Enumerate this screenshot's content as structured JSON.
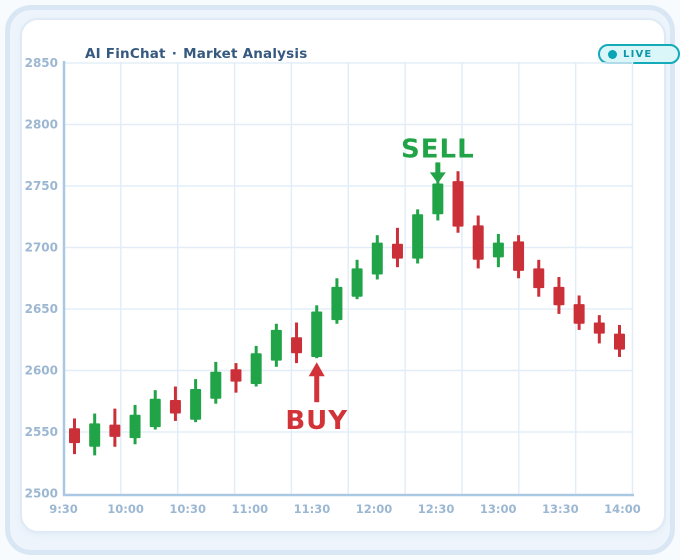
{
  "header": {
    "brand": "AI FinChat",
    "separator": "·",
    "subtitle": "Market Analysis",
    "live_badge": {
      "label": "LIVE"
    }
  },
  "chart_data": {
    "type": "candlestick",
    "title": "AI FinChat · Market Analysis",
    "x_labels": [
      "9:30",
      "10:00",
      "10:30",
      "11:00",
      "11:30",
      "12:00",
      "12:30",
      "13:00",
      "13:30",
      "14:00"
    ],
    "y_tick_values": [
      2850,
      2800,
      2750,
      2700,
      2650,
      2600,
      2550,
      2500
    ],
    "ylim": [
      2500,
      2850
    ],
    "y_step": 50,
    "grid": true,
    "legend": "none",
    "colors": {
      "up": "#21a447",
      "down": "#cb3038",
      "grid": "#e3edf8",
      "axis": "#abc8e2",
      "tick_text": "#9cb7d2",
      "buy": "#d23338",
      "sell": "#21a447"
    },
    "candles": [
      {
        "time": "9:30",
        "open": 2553,
        "high": 2561,
        "low": 2532,
        "close": 2541
      },
      {
        "time": "9:40",
        "open": 2538,
        "high": 2565,
        "low": 2531,
        "close": 2557
      },
      {
        "time": "9:50",
        "open": 2556,
        "high": 2569,
        "low": 2538,
        "close": 2546
      },
      {
        "time": "10:00",
        "open": 2545,
        "high": 2572,
        "low": 2540,
        "close": 2564
      },
      {
        "time": "10:10",
        "open": 2554,
        "high": 2584,
        "low": 2552,
        "close": 2577
      },
      {
        "time": "10:20",
        "open": 2576,
        "high": 2587,
        "low": 2559,
        "close": 2565
      },
      {
        "time": "10:30",
        "open": 2560,
        "high": 2593,
        "low": 2558,
        "close": 2585
      },
      {
        "time": "10:40",
        "open": 2577,
        "high": 2607,
        "low": 2573,
        "close": 2599
      },
      {
        "time": "10:50",
        "open": 2601,
        "high": 2606,
        "low": 2582,
        "close": 2591
      },
      {
        "time": "11:00",
        "open": 2589,
        "high": 2620,
        "low": 2587,
        "close": 2614
      },
      {
        "time": "11:10",
        "open": 2608,
        "high": 2638,
        "low": 2603,
        "close": 2633
      },
      {
        "time": "11:20",
        "open": 2627,
        "high": 2639,
        "low": 2606,
        "close": 2614
      },
      {
        "time": "11:30",
        "open": 2611,
        "high": 2653,
        "low": 2610,
        "close": 2648
      },
      {
        "time": "11:40",
        "open": 2641,
        "high": 2675,
        "low": 2638,
        "close": 2668
      },
      {
        "time": "11:50",
        "open": 2660,
        "high": 2690,
        "low": 2658,
        "close": 2683
      },
      {
        "time": "12:00",
        "open": 2678,
        "high": 2710,
        "low": 2674,
        "close": 2704
      },
      {
        "time": "12:10",
        "open": 2703,
        "high": 2716,
        "low": 2684,
        "close": 2691
      },
      {
        "time": "12:20",
        "open": 2691,
        "high": 2731,
        "low": 2687,
        "close": 2727
      },
      {
        "time": "12:30",
        "open": 2727,
        "high": 2757,
        "low": 2722,
        "close": 2752
      },
      {
        "time": "12:40",
        "open": 2754,
        "high": 2762,
        "low": 2712,
        "close": 2717
      },
      {
        "time": "12:50",
        "open": 2718,
        "high": 2726,
        "low": 2683,
        "close": 2690
      },
      {
        "time": "13:00",
        "open": 2692,
        "high": 2711,
        "low": 2684,
        "close": 2704
      },
      {
        "time": "13:10",
        "open": 2705,
        "high": 2710,
        "low": 2675,
        "close": 2681
      },
      {
        "time": "13:20",
        "open": 2683,
        "high": 2690,
        "low": 2660,
        "close": 2667
      },
      {
        "time": "13:30",
        "open": 2668,
        "high": 2676,
        "low": 2646,
        "close": 2653
      },
      {
        "time": "13:40",
        "open": 2654,
        "high": 2661,
        "low": 2633,
        "close": 2638
      },
      {
        "time": "13:50",
        "open": 2639,
        "high": 2645,
        "low": 2622,
        "close": 2630
      },
      {
        "time": "14:00",
        "open": 2630,
        "high": 2637,
        "low": 2611,
        "close": 2617
      }
    ],
    "annotations": [
      {
        "id": "buy",
        "label": "BUY",
        "candle_index": 12,
        "time": "11:30",
        "direction": "up"
      },
      {
        "id": "sell",
        "label": "SELL",
        "candle_index": 18,
        "time": "12:30",
        "direction": "down"
      }
    ]
  }
}
